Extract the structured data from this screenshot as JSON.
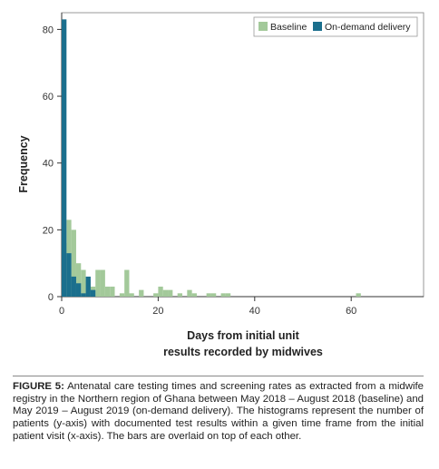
{
  "chart_data": {
    "type": "bar",
    "subtype": "overlaid-histogram",
    "title": "",
    "xlabel_line1": "Days from initial unit",
    "xlabel_line2": "results recorded by midwives",
    "ylabel": "Frequency",
    "xlim": [
      0,
      75
    ],
    "ylim": [
      0,
      85
    ],
    "x_ticks": [
      0,
      20,
      40,
      60
    ],
    "y_ticks": [
      0,
      20,
      40,
      60,
      80
    ],
    "grid": false,
    "legend_position": "top-right",
    "series": [
      {
        "name": "Baseline",
        "color": "#a3c99a",
        "bins": [
          {
            "x": 0,
            "y": 16
          },
          {
            "x": 1,
            "y": 23
          },
          {
            "x": 2,
            "y": 20
          },
          {
            "x": 3,
            "y": 10
          },
          {
            "x": 4,
            "y": 8
          },
          {
            "x": 5,
            "y": 5
          },
          {
            "x": 6,
            "y": 3
          },
          {
            "x": 7,
            "y": 8
          },
          {
            "x": 8,
            "y": 8
          },
          {
            "x": 9,
            "y": 3
          },
          {
            "x": 10,
            "y": 3
          },
          {
            "x": 12,
            "y": 1
          },
          {
            "x": 13,
            "y": 8
          },
          {
            "x": 14,
            "y": 1
          },
          {
            "x": 16,
            "y": 2
          },
          {
            "x": 19,
            "y": 1
          },
          {
            "x": 20,
            "y": 3
          },
          {
            "x": 21,
            "y": 2
          },
          {
            "x": 22,
            "y": 2
          },
          {
            "x": 24,
            "y": 1
          },
          {
            "x": 26,
            "y": 2
          },
          {
            "x": 27,
            "y": 1
          },
          {
            "x": 30,
            "y": 1
          },
          {
            "x": 31,
            "y": 1
          },
          {
            "x": 33,
            "y": 1
          },
          {
            "x": 34,
            "y": 1
          },
          {
            "x": 61,
            "y": 1
          }
        ]
      },
      {
        "name": "On-demand delivery",
        "color": "#1b6f8d",
        "bins": [
          {
            "x": 0,
            "y": 83
          },
          {
            "x": 1,
            "y": 13
          },
          {
            "x": 2,
            "y": 6
          },
          {
            "x": 3,
            "y": 4
          },
          {
            "x": 4,
            "y": 1
          },
          {
            "x": 5,
            "y": 6
          },
          {
            "x": 6,
            "y": 2
          }
        ]
      }
    ]
  },
  "caption": {
    "label": "FIGURE 5:",
    "text": " Antenatal care testing times and screening rates as extracted from a midwife registry in the Northern region of Ghana between May 2018 – August 2018 (baseline) and May 2019 – August 2019 (on-demand delivery). The histograms represent the number of patients (y-axis) with documented test results within a given time frame from the initial patient visit (x-axis). The bars are overlaid on top of each other."
  }
}
